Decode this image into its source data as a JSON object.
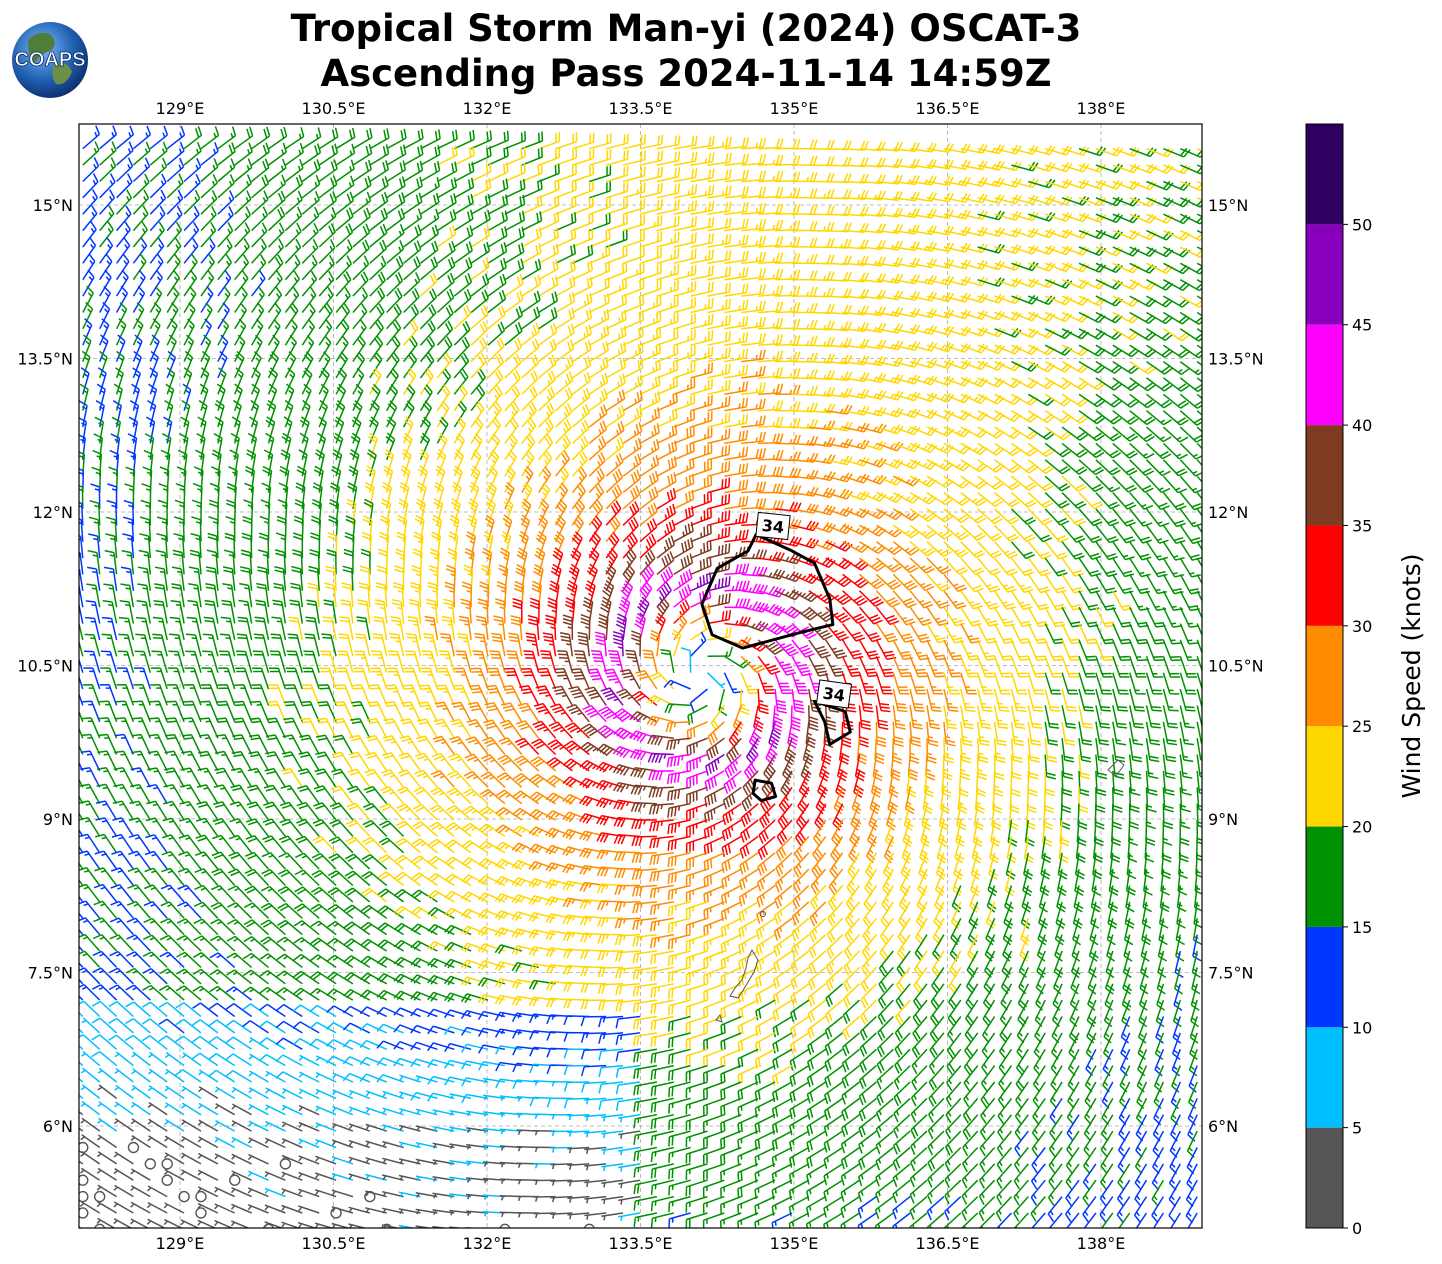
{
  "title": {
    "line1": "Tropical Storm Man-yi (2024) OSCAT-3",
    "line2": "Ascending Pass 2024-11-14 14:59Z"
  },
  "logo": {
    "text": "COAPS",
    "icon": "globe-logo-icon"
  },
  "map": {
    "lon_range": [
      128.0,
      139.0
    ],
    "lat_range": [
      4.8,
      15.6
    ],
    "lon_ticks": [
      {
        "value": 129.0,
        "label": "129°E"
      },
      {
        "value": 130.5,
        "label": "130.5°E"
      },
      {
        "value": 132.0,
        "label": "132°E"
      },
      {
        "value": 133.5,
        "label": "133.5°E"
      },
      {
        "value": 135.0,
        "label": "135°E"
      },
      {
        "value": 136.5,
        "label": "136.5°E"
      },
      {
        "value": 138.0,
        "label": "138°E"
      }
    ],
    "lat_ticks": [
      {
        "value": 15.0,
        "label": "15°N"
      },
      {
        "value": 13.5,
        "label": "13.5°N"
      },
      {
        "value": 12.0,
        "label": "12°N"
      },
      {
        "value": 10.5,
        "label": "10.5°N"
      },
      {
        "value": 9.0,
        "label": "9°N"
      },
      {
        "value": 7.5,
        "label": "7.5°N"
      },
      {
        "value": 6.0,
        "label": "6°N"
      }
    ],
    "gridlines": true,
    "storm_center": {
      "lon": 134.1,
      "lat": 10.4
    },
    "wind_radius_contour_label": "34"
  },
  "colorbar": {
    "title": "Wind Speed (knots)",
    "bins": [
      {
        "min": 0,
        "max": 5,
        "color": "#555555"
      },
      {
        "min": 5,
        "max": 10,
        "color": "#00bfff"
      },
      {
        "min": 10,
        "max": 15,
        "color": "#0037ff"
      },
      {
        "min": 15,
        "max": 20,
        "color": "#009100"
      },
      {
        "min": 20,
        "max": 25,
        "color": "#ffd700"
      },
      {
        "min": 25,
        "max": 30,
        "color": "#ff8c00"
      },
      {
        "min": 30,
        "max": 35,
        "color": "#ff0000"
      },
      {
        "min": 35,
        "max": 40,
        "color": "#7f3b22"
      },
      {
        "min": 40,
        "max": 45,
        "color": "#ff00ff"
      },
      {
        "min": 45,
        "max": 50,
        "color": "#8800bb"
      },
      {
        "min": 50,
        "max": 55,
        "color": "#2e0060"
      }
    ],
    "tick_labels": [
      "0",
      "5",
      "10",
      "15",
      "20",
      "25",
      "30",
      "35",
      "40",
      "45",
      "50"
    ]
  },
  "chart_data": {
    "type": "wind-barb-map",
    "title": "Tropical Storm Man-yi (2024) OSCAT-3 Ascending Pass 2024-11-14 14:59Z",
    "xlabel": "",
    "ylabel": "",
    "x_ticks": [
      "129°E",
      "130.5°E",
      "132°E",
      "133.5°E",
      "135°E",
      "136.5°E",
      "138°E"
    ],
    "y_ticks": [
      "15°N",
      "13.5°N",
      "12°N",
      "10.5°N",
      "9°N",
      "7.5°N",
      "6°N"
    ],
    "xlim": [
      128.0,
      139.0
    ],
    "ylim": [
      4.8,
      15.6
    ],
    "colorbar_label": "Wind Speed (knots)",
    "colorbar_range": [
      0,
      55
    ],
    "max_wind_region_knots": "40-45",
    "contours": [
      {
        "label": "34",
        "points": [
          [
            134.63,
            11.78
          ],
          [
            134.55,
            11.62
          ],
          [
            134.25,
            11.45
          ],
          [
            134.1,
            11.1
          ],
          [
            134.2,
            10.8
          ],
          [
            134.5,
            10.67
          ],
          [
            135.05,
            10.82
          ],
          [
            135.38,
            10.9
          ],
          [
            135.35,
            11.15
          ],
          [
            135.2,
            11.5
          ],
          [
            134.98,
            11.62
          ]
        ]
      },
      {
        "label": "34",
        "points": [
          [
            135.2,
            10.15
          ],
          [
            135.5,
            10.05
          ],
          [
            135.55,
            9.85
          ],
          [
            135.35,
            9.73
          ],
          [
            135.3,
            9.95
          ]
        ]
      },
      {
        "label": "",
        "points": [
          [
            134.62,
            9.38
          ],
          [
            134.78,
            9.35
          ],
          [
            134.82,
            9.22
          ],
          [
            134.68,
            9.18
          ],
          [
            134.6,
            9.25
          ]
        ]
      }
    ]
  }
}
